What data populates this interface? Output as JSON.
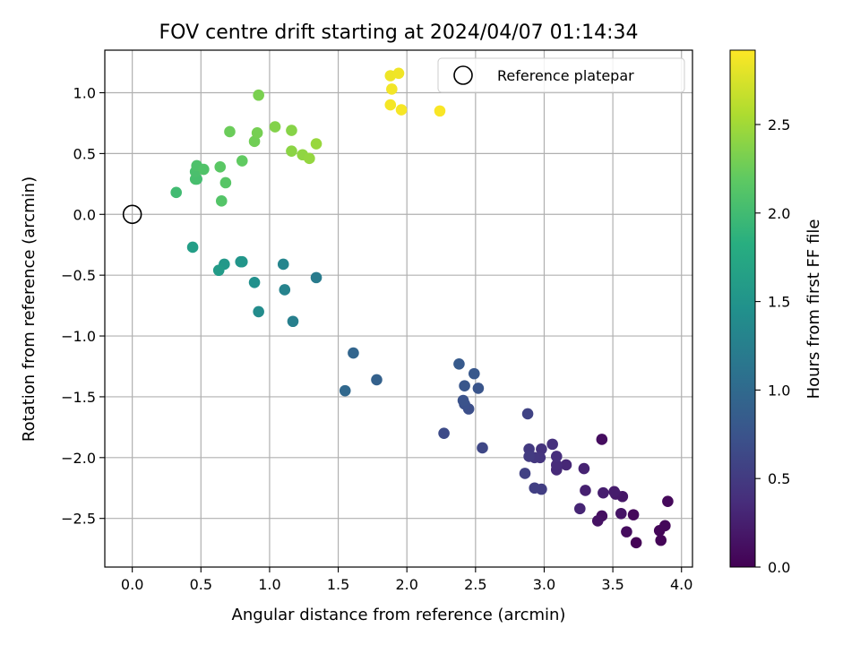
{
  "chart_data": {
    "type": "scatter",
    "title": "FOV centre drift starting at 2024/04/07 01:14:34",
    "xlabel": "Angular distance from reference (arcmin)",
    "ylabel": "Rotation from reference (arcmin)",
    "xlim": [
      -0.2,
      4.08
    ],
    "ylim": [
      -2.9,
      1.35
    ],
    "xticks": [
      0.0,
      0.5,
      1.0,
      1.5,
      2.0,
      2.5,
      3.0,
      3.5,
      4.0
    ],
    "xtick_labels": [
      "0.0",
      "0.5",
      "1.0",
      "1.5",
      "2.0",
      "2.5",
      "3.0",
      "3.5",
      "4.0"
    ],
    "yticks": [
      -2.5,
      -2.0,
      -1.5,
      -1.0,
      -0.5,
      0.0,
      0.5,
      1.0
    ],
    "ytick_labels": [
      "−2.5",
      "−2.0",
      "−1.5",
      "−1.0",
      "−0.5",
      "0.0",
      "0.5",
      "1.0"
    ],
    "grid": true,
    "legend": {
      "position": "top-right",
      "entries": [
        "Reference platepar"
      ]
    },
    "reference_point": {
      "x": 0.0,
      "y": 0.0,
      "label": "Reference platepar"
    },
    "colorbar": {
      "label": "Hours from first FF file",
      "colormap": "viridis",
      "range": [
        0.0,
        2.92
      ],
      "ticks": [
        0.0,
        0.5,
        1.0,
        1.5,
        2.0,
        2.5
      ],
      "tick_labels": [
        "0.0",
        "0.5",
        "1.0",
        "1.5",
        "2.0",
        "2.5"
      ]
    },
    "points": [
      {
        "x": 3.67,
        "y": -2.7,
        "c": 0.02
      },
      {
        "x": 3.85,
        "y": -2.68,
        "c": 0.03
      },
      {
        "x": 3.84,
        "y": -2.6,
        "c": 0.04
      },
      {
        "x": 3.88,
        "y": -2.56,
        "c": 0.05
      },
      {
        "x": 3.65,
        "y": -2.47,
        "c": 0.06
      },
      {
        "x": 3.9,
        "y": -2.36,
        "c": 0.07
      },
      {
        "x": 3.6,
        "y": -2.61,
        "c": 0.09
      },
      {
        "x": 3.42,
        "y": -1.85,
        "c": 0.1
      },
      {
        "x": 3.42,
        "y": -2.48,
        "c": 0.12
      },
      {
        "x": 3.39,
        "y": -2.52,
        "c": 0.14
      },
      {
        "x": 3.56,
        "y": -2.46,
        "c": 0.16
      },
      {
        "x": 3.57,
        "y": -2.32,
        "c": 0.18
      },
      {
        "x": 3.52,
        "y": -2.3,
        "c": 0.2
      },
      {
        "x": 3.51,
        "y": -2.28,
        "c": 0.22
      },
      {
        "x": 3.43,
        "y": -2.29,
        "c": 0.24
      },
      {
        "x": 3.3,
        "y": -2.27,
        "c": 0.26
      },
      {
        "x": 3.29,
        "y": -2.09,
        "c": 0.28
      },
      {
        "x": 3.26,
        "y": -2.42,
        "c": 0.3
      },
      {
        "x": 3.16,
        "y": -2.06,
        "c": 0.32
      },
      {
        "x": 3.09,
        "y": -2.1,
        "c": 0.34
      },
      {
        "x": 3.09,
        "y": -2.06,
        "c": 0.36
      },
      {
        "x": 3.09,
        "y": -1.99,
        "c": 0.38
      },
      {
        "x": 3.06,
        "y": -1.89,
        "c": 0.4
      },
      {
        "x": 2.98,
        "y": -1.93,
        "c": 0.42
      },
      {
        "x": 2.97,
        "y": -2.0,
        "c": 0.44
      },
      {
        "x": 2.93,
        "y": -2.0,
        "c": 0.46
      },
      {
        "x": 2.89,
        "y": -1.93,
        "c": 0.48
      },
      {
        "x": 2.89,
        "y": -1.99,
        "c": 0.5
      },
      {
        "x": 2.98,
        "y": -2.26,
        "c": 0.52
      },
      {
        "x": 2.93,
        "y": -2.25,
        "c": 0.54
      },
      {
        "x": 2.86,
        "y": -2.13,
        "c": 0.56
      },
      {
        "x": 2.88,
        "y": -1.64,
        "c": 0.58
      },
      {
        "x": 2.55,
        "y": -1.92,
        "c": 0.62
      },
      {
        "x": 2.27,
        "y": -1.8,
        "c": 0.66
      },
      {
        "x": 2.45,
        "y": -1.6,
        "c": 0.7
      },
      {
        "x": 2.42,
        "y": -1.56,
        "c": 0.72
      },
      {
        "x": 2.41,
        "y": -1.53,
        "c": 0.74
      },
      {
        "x": 2.52,
        "y": -1.43,
        "c": 0.76
      },
      {
        "x": 2.42,
        "y": -1.41,
        "c": 0.78
      },
      {
        "x": 2.49,
        "y": -1.31,
        "c": 0.8
      },
      {
        "x": 2.38,
        "y": -1.23,
        "c": 0.82
      },
      {
        "x": 1.78,
        "y": -1.36,
        "c": 0.9
      },
      {
        "x": 1.61,
        "y": -1.14,
        "c": 0.95
      },
      {
        "x": 1.55,
        "y": -1.45,
        "c": 0.98
      },
      {
        "x": 1.34,
        "y": -0.52,
        "c": 1.2
      },
      {
        "x": 1.17,
        "y": -0.88,
        "c": 1.25
      },
      {
        "x": 1.11,
        "y": -0.62,
        "c": 1.3
      },
      {
        "x": 1.1,
        "y": -0.41,
        "c": 1.32
      },
      {
        "x": 0.92,
        "y": -0.8,
        "c": 1.4
      },
      {
        "x": 0.89,
        "y": -0.56,
        "c": 1.45
      },
      {
        "x": 0.79,
        "y": -0.39,
        "c": 1.5
      },
      {
        "x": 0.8,
        "y": -0.39,
        "c": 1.52
      },
      {
        "x": 0.67,
        "y": -0.41,
        "c": 1.55
      },
      {
        "x": 0.63,
        "y": -0.46,
        "c": 1.58
      },
      {
        "x": 0.44,
        "y": -0.27,
        "c": 1.62
      },
      {
        "x": 0.32,
        "y": 0.18,
        "c": 2.0
      },
      {
        "x": 0.47,
        "y": 0.29,
        "c": 2.02
      },
      {
        "x": 0.46,
        "y": 0.29,
        "c": 2.04
      },
      {
        "x": 0.46,
        "y": 0.35,
        "c": 2.06
      },
      {
        "x": 0.47,
        "y": 0.4,
        "c": 2.08
      },
      {
        "x": 0.52,
        "y": 0.37,
        "c": 2.1
      },
      {
        "x": 0.65,
        "y": 0.11,
        "c": 2.12
      },
      {
        "x": 0.68,
        "y": 0.26,
        "c": 2.14
      },
      {
        "x": 0.64,
        "y": 0.39,
        "c": 2.16
      },
      {
        "x": 0.8,
        "y": 0.44,
        "c": 2.2
      },
      {
        "x": 0.71,
        "y": 0.68,
        "c": 2.25
      },
      {
        "x": 0.89,
        "y": 0.6,
        "c": 2.28
      },
      {
        "x": 0.91,
        "y": 0.67,
        "c": 2.3
      },
      {
        "x": 0.92,
        "y": 0.98,
        "c": 2.32
      },
      {
        "x": 1.04,
        "y": 0.72,
        "c": 2.36
      },
      {
        "x": 1.16,
        "y": 0.69,
        "c": 2.38
      },
      {
        "x": 1.16,
        "y": 0.52,
        "c": 2.4
      },
      {
        "x": 1.24,
        "y": 0.49,
        "c": 2.42
      },
      {
        "x": 1.29,
        "y": 0.46,
        "c": 2.44
      },
      {
        "x": 1.34,
        "y": 0.58,
        "c": 2.46
      },
      {
        "x": 1.88,
        "y": 1.14,
        "c": 2.85
      },
      {
        "x": 1.94,
        "y": 1.16,
        "c": 2.86
      },
      {
        "x": 1.89,
        "y": 1.03,
        "c": 2.87
      },
      {
        "x": 1.88,
        "y": 0.9,
        "c": 2.88
      },
      {
        "x": 1.96,
        "y": 0.86,
        "c": 2.89
      },
      {
        "x": 2.24,
        "y": 0.85,
        "c": 2.9
      }
    ]
  }
}
